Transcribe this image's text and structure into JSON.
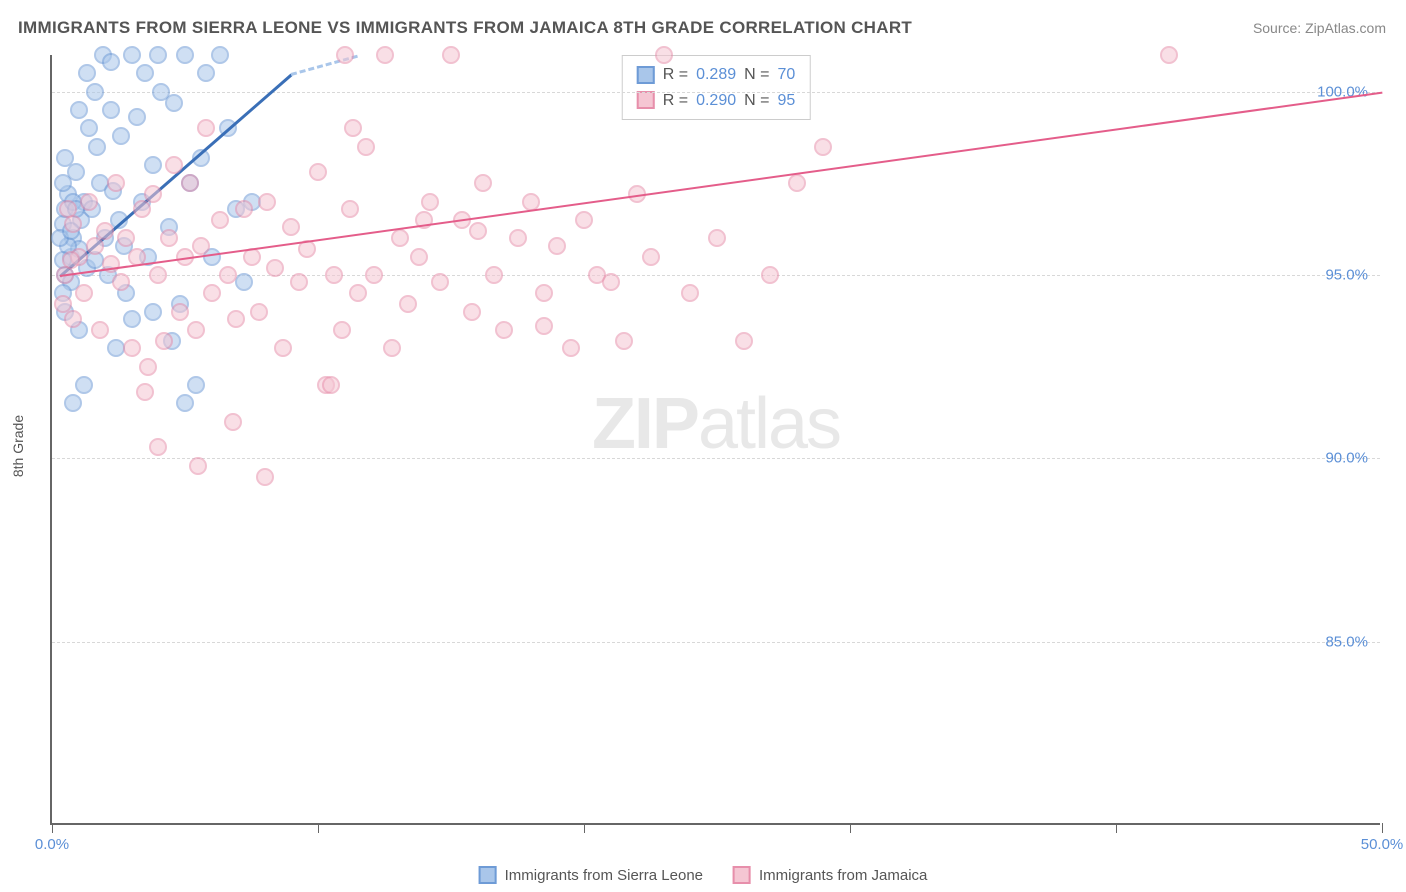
{
  "title": "IMMIGRANTS FROM SIERRA LEONE VS IMMIGRANTS FROM JAMAICA 8TH GRADE CORRELATION CHART",
  "source_label": "Source: ",
  "source_name": "ZipAtlas.com",
  "watermark_bold": "ZIP",
  "watermark_light": "atlas",
  "axes": {
    "ylabel": "8th Grade",
    "xlim": [
      0,
      50
    ],
    "ylim": [
      80,
      101
    ],
    "x_ticks": [
      0,
      10,
      20,
      30,
      40,
      50
    ],
    "x_tick_labels": {
      "0": "0.0%",
      "50": "50.0%"
    },
    "y_gridlines": [
      85,
      90,
      95,
      100
    ],
    "y_tick_labels": {
      "85": "85.0%",
      "90": "90.0%",
      "95": "95.0%",
      "100": "100.0%"
    },
    "grid_color": "#d8d8d8",
    "axis_color": "#666666",
    "tick_label_color": "#5b8fd6",
    "tick_fontsize": 15
  },
  "series": [
    {
      "name": "Immigrants from Sierra Leone",
      "color_fill": "#a9c6ea",
      "color_stroke": "#6e9bd6",
      "css_class": "blue",
      "r_label": "R = ",
      "r_value": "0.289",
      "n_label": "   N = ",
      "n_value": "70",
      "trend": {
        "x1": 0.3,
        "y1": 95.0,
        "x2_solid": 9.0,
        "y2_solid": 100.5,
        "x2_dash": 11.5,
        "y2_dash": 101.0,
        "color": "#3a6fb7"
      },
      "points": [
        [
          0.4,
          96.4
        ],
        [
          0.5,
          95.0
        ],
        [
          0.6,
          97.2
        ],
        [
          0.7,
          95.5
        ],
        [
          0.5,
          98.2
        ],
        [
          0.8,
          96.0
        ],
        [
          0.9,
          97.8
        ],
        [
          1.0,
          95.7
        ],
        [
          1.1,
          96.5
        ],
        [
          1.2,
          97.0
        ],
        [
          1.3,
          95.2
        ],
        [
          1.4,
          99.0
        ],
        [
          1.5,
          96.8
        ],
        [
          1.6,
          95.4
        ],
        [
          1.7,
          98.5
        ],
        [
          1.8,
          97.5
        ],
        [
          2.0,
          96.0
        ],
        [
          2.1,
          95.0
        ],
        [
          2.2,
          99.5
        ],
        [
          2.3,
          97.3
        ],
        [
          2.5,
          96.5
        ],
        [
          2.6,
          98.8
        ],
        [
          2.7,
          95.8
        ],
        [
          2.8,
          94.5
        ],
        [
          3.0,
          101.0
        ],
        [
          3.2,
          99.3
        ],
        [
          3.4,
          97.0
        ],
        [
          3.5,
          100.5
        ],
        [
          3.6,
          95.5
        ],
        [
          3.8,
          98.0
        ],
        [
          4.0,
          101.0
        ],
        [
          4.1,
          100.0
        ],
        [
          4.4,
          96.3
        ],
        [
          4.6,
          99.7
        ],
        [
          4.8,
          94.2
        ],
        [
          5.0,
          101.0
        ],
        [
          5.2,
          97.5
        ],
        [
          5.4,
          92.0
        ],
        [
          5.6,
          98.2
        ],
        [
          5.8,
          100.5
        ],
        [
          6.0,
          95.5
        ],
        [
          6.3,
          101.0
        ],
        [
          6.6,
          99.0
        ],
        [
          6.9,
          96.8
        ],
        [
          7.2,
          94.8
        ],
        [
          7.5,
          97.0
        ],
        [
          1.0,
          93.5
        ],
        [
          1.2,
          92.0
        ],
        [
          0.8,
          91.5
        ],
        [
          2.4,
          93.0
        ],
        [
          3.0,
          93.8
        ],
        [
          3.8,
          94.0
        ],
        [
          4.5,
          93.2
        ],
        [
          0.5,
          94.0
        ],
        [
          0.7,
          94.8
        ],
        [
          1.0,
          99.5
        ],
        [
          1.3,
          100.5
        ],
        [
          1.6,
          100.0
        ],
        [
          1.9,
          101.0
        ],
        [
          2.2,
          100.8
        ],
        [
          0.4,
          97.5
        ],
        [
          0.5,
          96.8
        ],
        [
          0.6,
          95.8
        ],
        [
          0.3,
          96.0
        ],
        [
          0.4,
          95.4
        ],
        [
          0.7,
          96.2
        ],
        [
          0.8,
          97.0
        ],
        [
          0.9,
          96.8
        ],
        [
          0.4,
          94.5
        ],
        [
          5.0,
          91.5
        ]
      ]
    },
    {
      "name": "Immigrants from Jamaica",
      "color_fill": "#f5c6d3",
      "color_stroke": "#e78fab",
      "css_class": "pink",
      "r_label": "R = ",
      "r_value": "0.290",
      "n_label": "   N = ",
      "n_value": "95",
      "trend": {
        "x1": 0.3,
        "y1": 95.0,
        "x2_solid": 50.0,
        "y2_solid": 100.0,
        "color": "#e45d8a"
      },
      "points": [
        [
          0.5,
          95.0
        ],
        [
          0.8,
          96.4
        ],
        [
          1.0,
          95.5
        ],
        [
          1.2,
          94.5
        ],
        [
          1.4,
          97.0
        ],
        [
          1.6,
          95.8
        ],
        [
          1.8,
          93.5
        ],
        [
          2.0,
          96.2
        ],
        [
          2.2,
          95.3
        ],
        [
          2.4,
          97.5
        ],
        [
          2.6,
          94.8
        ],
        [
          2.8,
          96.0
        ],
        [
          3.0,
          93.0
        ],
        [
          3.2,
          95.5
        ],
        [
          3.4,
          96.8
        ],
        [
          3.6,
          92.5
        ],
        [
          3.8,
          97.2
        ],
        [
          4.0,
          95.0
        ],
        [
          4.2,
          93.2
        ],
        [
          4.4,
          96.0
        ],
        [
          4.6,
          98.0
        ],
        [
          4.8,
          94.0
        ],
        [
          5.0,
          95.5
        ],
        [
          5.2,
          97.5
        ],
        [
          5.4,
          93.5
        ],
        [
          5.6,
          95.8
        ],
        [
          5.8,
          99.0
        ],
        [
          6.0,
          94.5
        ],
        [
          6.3,
          96.5
        ],
        [
          6.6,
          95.0
        ],
        [
          6.9,
          93.8
        ],
        [
          7.2,
          96.8
        ],
        [
          7.5,
          95.5
        ],
        [
          7.8,
          94.0
        ],
        [
          8.1,
          97.0
        ],
        [
          8.4,
          95.2
        ],
        [
          8.7,
          93.0
        ],
        [
          9.0,
          96.3
        ],
        [
          9.3,
          94.8
        ],
        [
          9.6,
          95.7
        ],
        [
          10.0,
          97.8
        ],
        [
          10.3,
          92.0
        ],
        [
          10.6,
          95.0
        ],
        [
          10.9,
          93.5
        ],
        [
          11.2,
          96.8
        ],
        [
          11.5,
          94.5
        ],
        [
          11.8,
          98.5
        ],
        [
          12.1,
          95.0
        ],
        [
          12.5,
          101.0
        ],
        [
          12.8,
          93.0
        ],
        [
          13.1,
          96.0
        ],
        [
          13.4,
          94.2
        ],
        [
          13.8,
          95.5
        ],
        [
          14.2,
          97.0
        ],
        [
          14.6,
          94.8
        ],
        [
          15.0,
          101.0
        ],
        [
          15.4,
          96.5
        ],
        [
          15.8,
          94.0
        ],
        [
          16.2,
          97.5
        ],
        [
          16.6,
          95.0
        ],
        [
          17.0,
          93.5
        ],
        [
          17.5,
          96.0
        ],
        [
          18.0,
          97.0
        ],
        [
          18.5,
          94.5
        ],
        [
          19.0,
          95.8
        ],
        [
          19.5,
          93.0
        ],
        [
          20.0,
          96.5
        ],
        [
          20.5,
          95.0
        ],
        [
          21.0,
          94.8
        ],
        [
          21.5,
          93.2
        ],
        [
          22.0,
          97.2
        ],
        [
          22.5,
          95.5
        ],
        [
          23.0,
          101.0
        ],
        [
          24.0,
          94.5
        ],
        [
          25.0,
          96.0
        ],
        [
          26.0,
          93.2
        ],
        [
          27.0,
          95.0
        ],
        [
          28.0,
          97.5
        ],
        [
          29.0,
          98.5
        ],
        [
          42.0,
          101.0
        ],
        [
          5.5,
          89.8
        ],
        [
          8.0,
          89.5
        ],
        [
          10.5,
          92.0
        ],
        [
          6.8,
          91.0
        ],
        [
          3.5,
          91.8
        ],
        [
          4.0,
          90.3
        ],
        [
          0.6,
          96.8
        ],
        [
          0.7,
          95.4
        ],
        [
          0.4,
          94.2
        ],
        [
          0.8,
          93.8
        ],
        [
          11.0,
          101.0
        ],
        [
          14.0,
          96.5
        ],
        [
          16.0,
          96.2
        ],
        [
          18.5,
          93.6
        ],
        [
          11.3,
          99.0
        ]
      ]
    }
  ],
  "bottom_legend": [
    {
      "swatch": "blue",
      "label": "Immigrants from Sierra Leone"
    },
    {
      "swatch": "pink",
      "label": "Immigrants from Jamaica"
    }
  ],
  "colors": {
    "background": "#ffffff",
    "title": "#555555",
    "source": "#888888"
  }
}
